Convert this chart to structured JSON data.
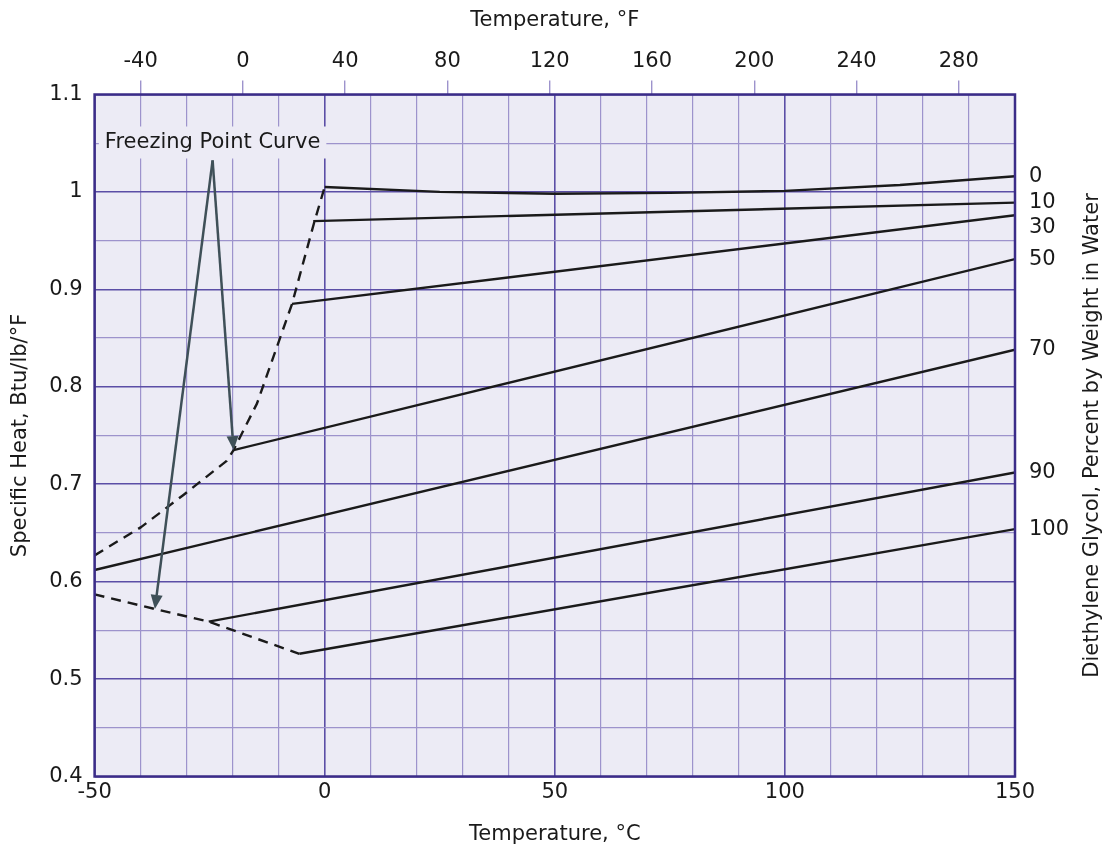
{
  "chart_data": {
    "type": "line",
    "xlabel": "Temperature, °C",
    "x2label": "Temperature, °F",
    "ylabel": "Specific Heat, Btu/lb/°F",
    "y2label": "Diethylene Glycol, Percent by Weight in Water",
    "annotations": [
      "Freezing Point Curve"
    ],
    "series": [
      {
        "name": "0",
        "color": "#1a1a1a",
        "x": [
          0,
          25,
          50,
          75,
          100,
          125,
          150
        ],
        "values": [
          1.005,
          1.0,
          0.998,
          0.999,
          1.001,
          1.007,
          1.016
        ]
      },
      {
        "name": "10",
        "color": "#1a1a1a",
        "x": [
          -2.5,
          150
        ],
        "values": [
          0.97,
          0.989
        ]
      },
      {
        "name": "30",
        "color": "#1a1a1a",
        "x": [
          -7.1,
          150
        ],
        "values": [
          0.885,
          0.976
        ]
      },
      {
        "name": "50",
        "color": "#1a1a1a",
        "x": [
          -19.8,
          150
        ],
        "values": [
          0.735,
          0.931
        ]
      },
      {
        "name": "70",
        "color": "#1a1a1a",
        "x": [
          -50,
          150
        ],
        "values": [
          0.612,
          0.838
        ]
      },
      {
        "name": "90",
        "color": "#1a1a1a",
        "x": [
          -25.2,
          150
        ],
        "values": [
          0.559,
          0.712
        ]
      },
      {
        "name": "100",
        "color": "#1a1a1a",
        "x": [
          -5.5,
          150
        ],
        "values": [
          0.526,
          0.654
        ]
      },
      {
        "color": "#1a1a1a",
        "line_style": "dashed",
        "x": [
          -50,
          -39.9,
          -30.7,
          -21.3,
          -19.8,
          -14.7,
          -7.1,
          -4.4,
          -2.2,
          0
        ],
        "values": [
          0.627,
          0.656,
          0.689,
          0.724,
          0.735,
          0.783,
          0.885,
          0.932,
          0.97,
          1.005
        ]
      },
      {
        "color": "#1a1a1a",
        "line_style": "dashed",
        "x": [
          -50,
          -36.9,
          -25.2,
          -5.5
        ],
        "values": [
          0.587,
          0.572,
          0.559,
          0.526
        ]
      }
    ],
    "xlim": [
      -50,
      150
    ],
    "xticks": [
      -50,
      {
        "value": -40,
        "label": null
      },
      {
        "value": -30,
        "label": null
      },
      {
        "value": -20,
        "label": null
      },
      {
        "value": -10,
        "label": null
      },
      0,
      {
        "value": 10,
        "label": null
      },
      {
        "value": 20,
        "label": null
      },
      {
        "value": 30,
        "label": null
      },
      {
        "value": 40,
        "label": null
      },
      50,
      {
        "value": 60,
        "label": null
      },
      {
        "value": 70,
        "label": null
      },
      {
        "value": 80,
        "label": null
      },
      {
        "value": 90,
        "label": null
      },
      100,
      {
        "value": 110,
        "label": null
      },
      {
        "value": 120,
        "label": null
      },
      {
        "value": 130,
        "label": null
      },
      {
        "value": 140,
        "label": null
      },
      150
    ],
    "x2lim": [
      -58,
      302
    ],
    "x2ticks": [
      -40,
      0,
      40,
      80,
      120,
      160,
      200,
      240,
      280
    ],
    "ylim": [
      0.4,
      1.1
    ],
    "yticks": [
      0.4,
      {
        "value": 0.45,
        "label": null
      },
      0.5,
      {
        "value": 0.55,
        "label": null
      },
      0.6,
      {
        "value": 0.65,
        "label": null
      },
      0.7,
      {
        "value": 0.75,
        "label": null
      },
      0.8,
      {
        "value": 0.85,
        "label": null
      },
      0.9,
      {
        "value": 0.95,
        "label": null
      },
      1,
      {
        "value": 1.05,
        "label": null
      },
      1.1
    ],
    "grid": true,
    "legend": false,
    "marker": "none",
    "line_style": "solid"
  }
}
